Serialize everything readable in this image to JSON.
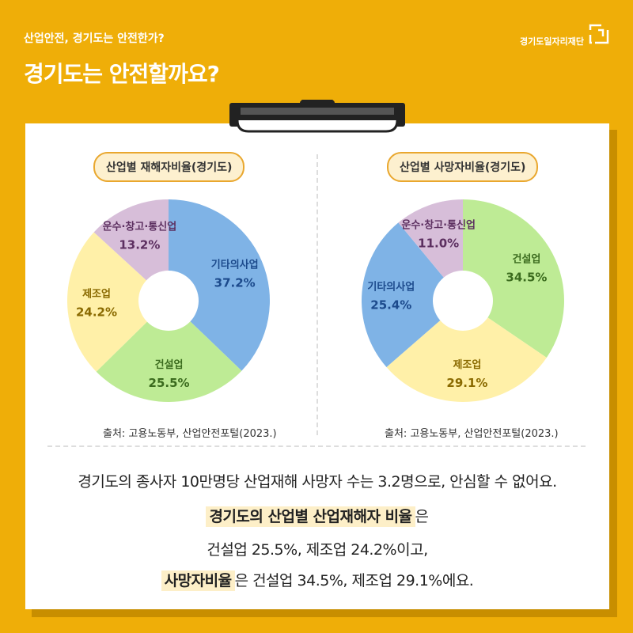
{
  "header": {
    "subtitle": "산업안전, 경기도는 안전한가?",
    "title": "경기도는 안전할까요?",
    "logo_text": "경기도일자리재단"
  },
  "chart_data": [
    {
      "type": "pie",
      "title": "산업별 재해자비율(경기도)",
      "unit": "%",
      "slices": [
        {
          "name": "기타의사업",
          "value": 37.2,
          "color": "#7FB3E6",
          "label_color": "#1C4A8C"
        },
        {
          "name": "건설업",
          "value": 25.5,
          "color": "#BEEB95",
          "label_color": "#3B6B1E"
        },
        {
          "name": "제조업",
          "value": 24.2,
          "color": "#FFF0A8",
          "label_color": "#8A6A00"
        },
        {
          "name": "운수·창고·통신업",
          "value": 13.2,
          "color": "#D7BED9",
          "label_color": "#5C2F60"
        }
      ],
      "source": "출처: 고용노동부, 산업안전포털(2023.)"
    },
    {
      "type": "pie",
      "title": "산업별 사망자비율(경기도)",
      "unit": "%",
      "slices": [
        {
          "name": "건설업",
          "value": 34.5,
          "color": "#BEEB95",
          "label_color": "#3B6B1E"
        },
        {
          "name": "제조업",
          "value": 29.1,
          "color": "#FFF0A8",
          "label_color": "#8A6A00"
        },
        {
          "name": "기타의사업",
          "value": 25.4,
          "color": "#7FB3E6",
          "label_color": "#1C4A8C"
        },
        {
          "name": "운수·창고·통신업",
          "value": 11.0,
          "color": "#D7BED9",
          "label_color": "#5C2F60"
        }
      ],
      "source": "출처: 고용노동부, 산업안전포털(2023.)"
    }
  ],
  "summary": {
    "line1": "경기도의 종사자 10만명당 산업재해 사망자 수는 3.2명으로, 안심할 수 없어요.",
    "line2_highlight": "경기도의 산업별 산업재해자 비율",
    "line2_rest": "은",
    "line3": "건설업 25.5%, 제조업 24.2%이고,",
    "line4_highlight": "사망자비율",
    "line4_rest": "은 건설업 34.5%, 제조업 29.1%에요."
  },
  "colors": {
    "background": "#EFAE08",
    "card": "#FFFFFF",
    "pill_border": "#E9A72E",
    "pill_fill": "#FDF0CF"
  }
}
